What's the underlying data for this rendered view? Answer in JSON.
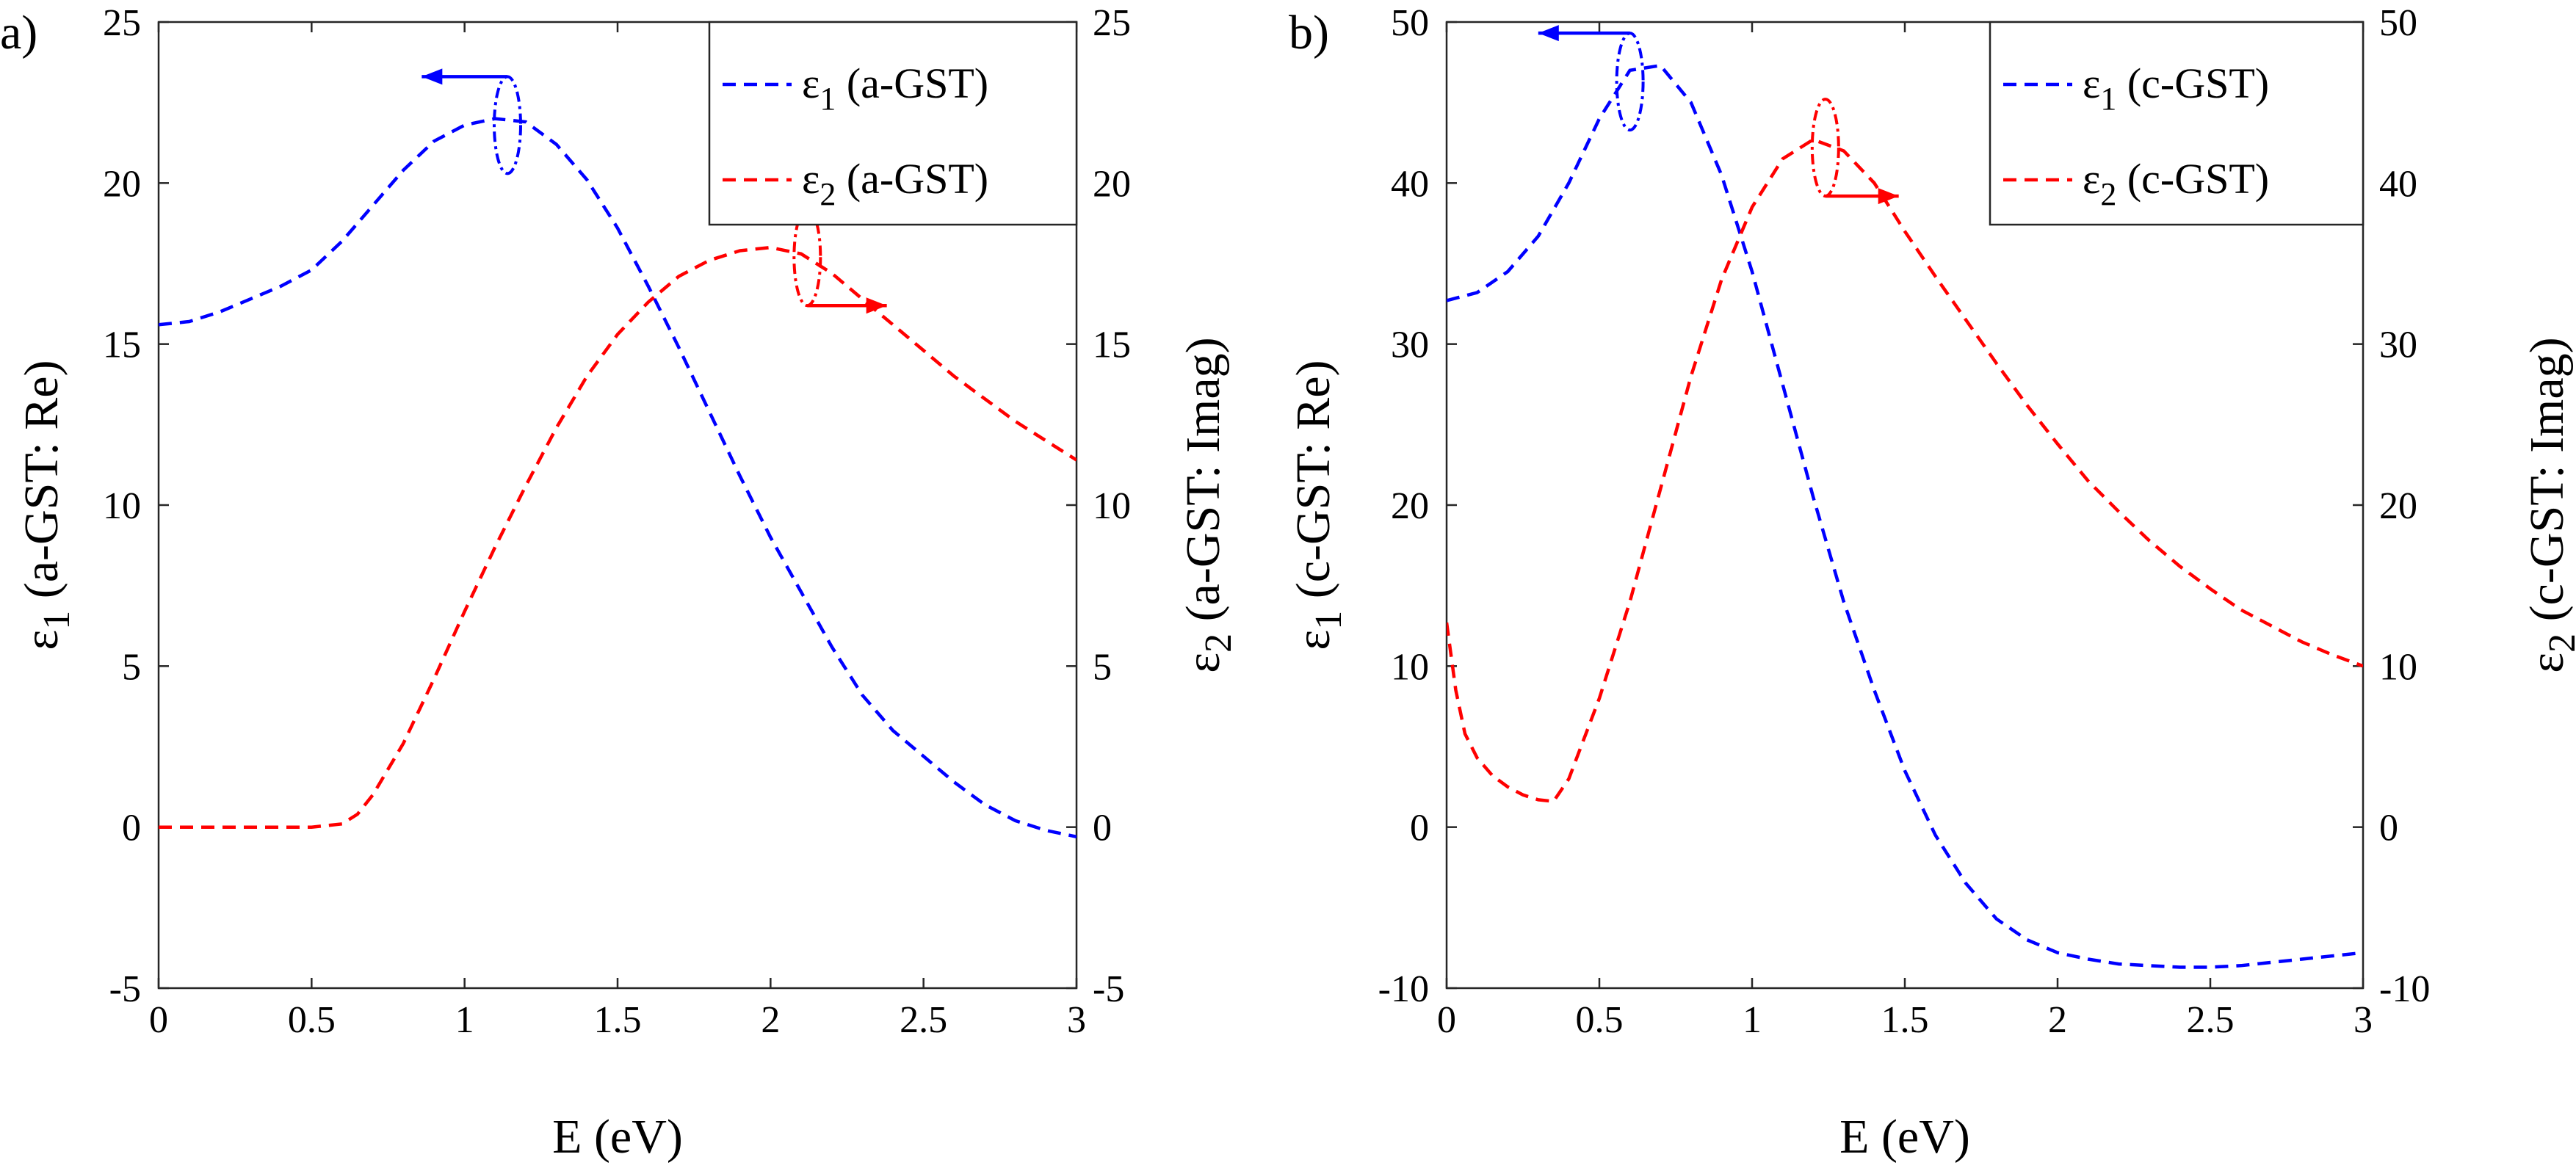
{
  "chart_data": [
    {
      "type": "line",
      "panel_label": "a)",
      "xlabel": "E (eV)",
      "ylabel_left": "ε1 (a-GST: Re)",
      "ylabel_right": "ε2 (a-GST: Imag)",
      "xlim": [
        0,
        3
      ],
      "ylim_left": [
        -5,
        25
      ],
      "ylim_right": [
        -5,
        25
      ],
      "xticks": [
        "0",
        "0.5",
        "1",
        "1.5",
        "2",
        "2.5",
        "3"
      ],
      "yticks_left": [
        "-5",
        "0",
        "5",
        "10",
        "15",
        "20",
        "25"
      ],
      "yticks_right": [
        "-5",
        "0",
        "5",
        "10",
        "15",
        "20",
        "25"
      ],
      "grid": false,
      "legend_position": "top-right",
      "series": [
        {
          "name": "ε1 (a-GST)",
          "symbol": "ε",
          "subscript": "1",
          "label_rest": " (a-GST)",
          "color": "#0000ff",
          "axis": "left",
          "x": [
            0,
            0.1,
            0.2,
            0.3,
            0.4,
            0.5,
            0.6,
            0.7,
            0.8,
            0.9,
            1.0,
            1.1,
            1.2,
            1.3,
            1.4,
            1.5,
            1.6,
            1.7,
            1.8,
            1.9,
            2.0,
            2.1,
            2.2,
            2.3,
            2.4,
            2.5,
            2.6,
            2.7,
            2.8,
            2.9,
            3.0
          ],
          "y": [
            15.6,
            15.7,
            16.0,
            16.4,
            16.8,
            17.3,
            18.2,
            19.3,
            20.4,
            21.3,
            21.8,
            22.0,
            21.9,
            21.2,
            20.1,
            18.6,
            16.8,
            14.9,
            12.9,
            10.9,
            9.0,
            7.3,
            5.6,
            4.1,
            3.0,
            2.2,
            1.4,
            0.7,
            0.2,
            -0.1,
            -0.3
          ]
        },
        {
          "name": "ε2 (a-GST)",
          "symbol": "ε",
          "subscript": "2",
          "label_rest": " (a-GST)",
          "color": "#ff0000",
          "axis": "right",
          "x": [
            0,
            0.1,
            0.2,
            0.3,
            0.4,
            0.5,
            0.6,
            0.65,
            0.7,
            0.8,
            0.9,
            1.0,
            1.1,
            1.2,
            1.3,
            1.4,
            1.5,
            1.6,
            1.7,
            1.8,
            1.9,
            2.0,
            2.1,
            2.2,
            2.3,
            2.4,
            2.5,
            2.6,
            2.7,
            2.8,
            2.9,
            3.0
          ],
          "y": [
            0,
            0,
            0,
            0,
            0,
            0,
            0.1,
            0.4,
            1.0,
            2.6,
            4.6,
            6.7,
            8.7,
            10.6,
            12.4,
            14.0,
            15.3,
            16.3,
            17.1,
            17.6,
            17.9,
            18.0,
            17.8,
            17.2,
            16.4,
            15.6,
            14.8,
            14.0,
            13.3,
            12.6,
            12.0,
            11.4
          ]
        }
      ],
      "annotations": [
        {
          "type": "ellipse-arrow",
          "direction": "left",
          "axis": "left",
          "x": 1.14,
          "y": 21.8,
          "arrow_to_x": 0.86
        },
        {
          "type": "ellipse-arrow",
          "direction": "right",
          "axis": "right",
          "x": 2.12,
          "y": 17.7,
          "arrow_to_x": 2.38
        }
      ]
    },
    {
      "type": "line",
      "panel_label": "b)",
      "xlabel": "E (eV)",
      "ylabel_left": "ε1 (c-GST: Re)",
      "ylabel_right": "ε2 (c-GST: Imag)",
      "xlim": [
        0,
        3
      ],
      "ylim_left": [
        -10,
        50
      ],
      "ylim_right": [
        -10,
        50
      ],
      "xticks": [
        "0",
        "0.5",
        "1",
        "1.5",
        "2",
        "2.5",
        "3"
      ],
      "yticks_left": [
        "-10",
        "0",
        "10",
        "20",
        "30",
        "40",
        "50"
      ],
      "yticks_right": [
        "-10",
        "0",
        "10",
        "20",
        "30",
        "40",
        "50"
      ],
      "grid": false,
      "legend_position": "top-right",
      "series": [
        {
          "name": "ε1 (c-GST)",
          "symbol": "ε",
          "subscript": "1",
          "label_rest": " (c-GST)",
          "color": "#0000ff",
          "axis": "left",
          "x": [
            0,
            0.1,
            0.2,
            0.3,
            0.4,
            0.5,
            0.6,
            0.7,
            0.8,
            0.9,
            1.0,
            1.1,
            1.2,
            1.3,
            1.4,
            1.5,
            1.6,
            1.7,
            1.8,
            1.9,
            2.0,
            2.1,
            2.2,
            2.3,
            2.4,
            2.5,
            2.6,
            2.7,
            2.8,
            2.9,
            3.0
          ],
          "y": [
            32.7,
            33.2,
            34.5,
            36.7,
            40.0,
            44.0,
            47.0,
            47.3,
            45.0,
            40.5,
            34.5,
            27.5,
            20.5,
            14.0,
            8.5,
            3.5,
            -0.5,
            -3.5,
            -5.7,
            -7.0,
            -7.8,
            -8.2,
            -8.5,
            -8.6,
            -8.7,
            -8.7,
            -8.6,
            -8.4,
            -8.2,
            -8.0,
            -7.8
          ]
        },
        {
          "name": "ε2 (c-GST)",
          "symbol": "ε",
          "subscript": "2",
          "label_rest": " (c-GST)",
          "color": "#ff0000",
          "axis": "right",
          "x": [
            0,
            0.03,
            0.06,
            0.1,
            0.15,
            0.2,
            0.25,
            0.3,
            0.35,
            0.4,
            0.5,
            0.6,
            0.7,
            0.8,
            0.9,
            1.0,
            1.1,
            1.2,
            1.3,
            1.4,
            1.5,
            1.6,
            1.7,
            1.8,
            1.9,
            2.0,
            2.1,
            2.2,
            2.3,
            2.4,
            2.5,
            2.6,
            2.7,
            2.8,
            2.9,
            3.0
          ],
          "y": [
            12.7,
            8.5,
            5.8,
            4.3,
            3.2,
            2.5,
            2.0,
            1.7,
            1.6,
            3.0,
            8.0,
            14.0,
            21.0,
            28.0,
            34.0,
            38.5,
            41.5,
            42.7,
            42.0,
            40.0,
            37.0,
            34.2,
            31.5,
            28.8,
            26.2,
            23.8,
            21.5,
            19.6,
            17.8,
            16.2,
            14.8,
            13.5,
            12.5,
            11.5,
            10.7,
            10.0
          ]
        }
      ],
      "annotations": [
        {
          "type": "ellipse-arrow",
          "direction": "left",
          "axis": "left",
          "x": 0.6,
          "y": 46.3,
          "arrow_to_x": 0.3
        },
        {
          "type": "ellipse-arrow",
          "direction": "right",
          "axis": "right",
          "x": 1.24,
          "y": 42.2,
          "arrow_to_x": 1.48
        }
      ]
    }
  ]
}
